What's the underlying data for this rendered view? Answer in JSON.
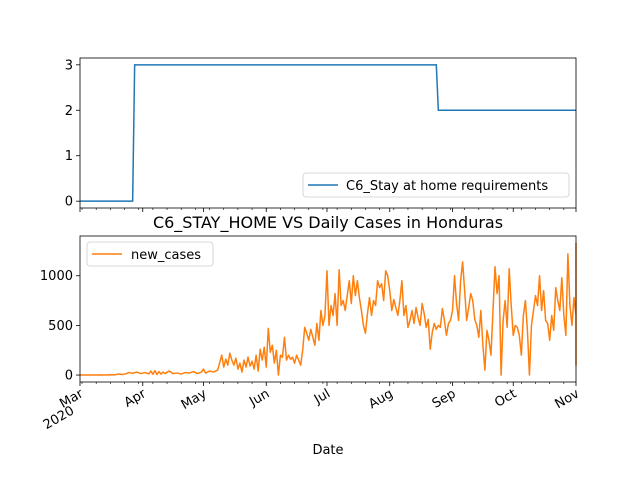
{
  "figure_title": "C6_STAY_HOME VS Daily Cases in Honduras",
  "shared_xlabel": "Date",
  "x_ticks": [
    {
      "date": "2020-03-01",
      "label": "Mar",
      "sublabel": "2020"
    },
    {
      "date": "2020-04-01",
      "label": "Apr",
      "sublabel": ""
    },
    {
      "date": "2020-05-01",
      "label": "May",
      "sublabel": ""
    },
    {
      "date": "2020-06-01",
      "label": "Jun",
      "sublabel": ""
    },
    {
      "date": "2020-07-01",
      "label": "Jul",
      "sublabel": ""
    },
    {
      "date": "2020-08-01",
      "label": "Aug",
      "sublabel": ""
    },
    {
      "date": "2020-09-01",
      "label": "Sep",
      "sublabel": ""
    },
    {
      "date": "2020-10-01",
      "label": "Oct",
      "sublabel": ""
    },
    {
      "date": "2020-11-01",
      "label": "Nov",
      "sublabel": ""
    }
  ],
  "colors": {
    "stay_home": "#1f77b4",
    "new_cases": "#ff7f0e"
  },
  "chart_data": [
    {
      "type": "line",
      "title": "",
      "xlabel": "",
      "ylabel": "",
      "xlim": [
        "2020-03-01",
        "2020-11-01"
      ],
      "ylim": [
        -0.15,
        3.15
      ],
      "yticks": [
        "0",
        "1",
        "2",
        "3"
      ],
      "legend": {
        "placement": "lower-right"
      },
      "series": [
        {
          "name": "C6_Stay at home requirements",
          "points": [
            [
              "2020-03-01",
              0
            ],
            [
              "2020-03-27",
              0
            ],
            [
              "2020-03-28",
              3
            ],
            [
              "2020-08-24",
              3
            ],
            [
              "2020-08-25",
              2
            ],
            [
              "2020-11-01",
              2
            ]
          ]
        }
      ]
    },
    {
      "type": "line",
      "title": "C6_STAY_HOME VS Daily Cases in Honduras",
      "xlabel": "Date",
      "ylabel": "",
      "xlim": [
        "2020-03-01",
        "2020-11-01"
      ],
      "ylim": [
        -70,
        1400
      ],
      "yticks": [
        "0",
        "500",
        "1000"
      ],
      "legend": {
        "placement": "upper-left"
      },
      "series": [
        {
          "name": "new_cases",
          "points": [
            [
              "2020-03-01",
              0
            ],
            [
              "2020-03-10",
              0
            ],
            [
              "2020-03-11",
              2
            ],
            [
              "2020-03-13",
              0
            ],
            [
              "2020-03-16",
              3
            ],
            [
              "2020-03-18",
              2
            ],
            [
              "2020-03-20",
              10
            ],
            [
              "2020-03-22",
              5
            ],
            [
              "2020-03-24",
              15
            ],
            [
              "2020-03-25",
              25
            ],
            [
              "2020-03-27",
              18
            ],
            [
              "2020-03-29",
              30
            ],
            [
              "2020-03-31",
              15
            ],
            [
              "2020-04-02",
              25
            ],
            [
              "2020-04-04",
              12
            ],
            [
              "2020-04-05",
              40
            ],
            [
              "2020-04-06",
              8
            ],
            [
              "2020-04-07",
              45
            ],
            [
              "2020-04-08",
              5
            ],
            [
              "2020-04-09",
              35
            ],
            [
              "2020-04-10",
              10
            ],
            [
              "2020-04-11",
              30
            ],
            [
              "2020-04-12",
              15
            ],
            [
              "2020-04-14",
              40
            ],
            [
              "2020-04-16",
              15
            ],
            [
              "2020-04-18",
              20
            ],
            [
              "2020-04-20",
              10
            ],
            [
              "2020-04-22",
              25
            ],
            [
              "2020-04-24",
              20
            ],
            [
              "2020-04-26",
              35
            ],
            [
              "2020-04-28",
              15
            ],
            [
              "2020-04-30",
              30
            ],
            [
              "2020-05-01",
              60
            ],
            [
              "2020-05-02",
              20
            ],
            [
              "2020-05-04",
              40
            ],
            [
              "2020-05-06",
              30
            ],
            [
              "2020-05-08",
              50
            ],
            [
              "2020-05-10",
              200
            ],
            [
              "2020-05-11",
              80
            ],
            [
              "2020-05-12",
              160
            ],
            [
              "2020-05-13",
              100
            ],
            [
              "2020-05-14",
              220
            ],
            [
              "2020-05-15",
              150
            ],
            [
              "2020-05-16",
              100
            ],
            [
              "2020-05-17",
              170
            ],
            [
              "2020-05-18",
              60
            ],
            [
              "2020-05-19",
              120
            ],
            [
              "2020-05-20",
              30
            ],
            [
              "2020-05-21",
              150
            ],
            [
              "2020-05-22",
              80
            ],
            [
              "2020-05-23",
              180
            ],
            [
              "2020-05-24",
              90
            ],
            [
              "2020-05-25",
              140
            ],
            [
              "2020-05-26",
              60
            ],
            [
              "2020-05-27",
              200
            ],
            [
              "2020-05-28",
              40
            ],
            [
              "2020-05-29",
              260
            ],
            [
              "2020-05-30",
              150
            ],
            [
              "2020-05-31",
              280
            ],
            [
              "2020-06-01",
              80
            ],
            [
              "2020-06-02",
              470
            ],
            [
              "2020-06-03",
              230
            ],
            [
              "2020-06-04",
              300
            ],
            [
              "2020-06-05",
              120
            ],
            [
              "2020-06-06",
              250
            ],
            [
              "2020-06-07",
              0
            ],
            [
              "2020-06-08",
              200
            ],
            [
              "2020-06-09",
              180
            ],
            [
              "2020-06-10",
              380
            ],
            [
              "2020-06-11",
              150
            ],
            [
              "2020-06-12",
              200
            ],
            [
              "2020-06-13",
              160
            ],
            [
              "2020-06-14",
              180
            ],
            [
              "2020-06-15",
              120
            ],
            [
              "2020-06-16",
              200
            ],
            [
              "2020-06-17",
              150
            ],
            [
              "2020-06-18",
              100
            ],
            [
              "2020-06-19",
              250
            ],
            [
              "2020-06-20",
              480
            ],
            [
              "2020-06-21",
              420
            ],
            [
              "2020-06-22",
              350
            ],
            [
              "2020-06-23",
              460
            ],
            [
              "2020-06-24",
              380
            ],
            [
              "2020-06-25",
              300
            ],
            [
              "2020-06-26",
              520
            ],
            [
              "2020-06-27",
              350
            ],
            [
              "2020-06-28",
              650
            ],
            [
              "2020-06-29",
              500
            ],
            [
              "2020-06-30",
              600
            ],
            [
              "2020-07-01",
              1050
            ],
            [
              "2020-07-02",
              500
            ],
            [
              "2020-07-03",
              700
            ],
            [
              "2020-07-04",
              600
            ],
            [
              "2020-07-05",
              820
            ],
            [
              "2020-07-06",
              500
            ],
            [
              "2020-07-07",
              1060
            ],
            [
              "2020-07-08",
              700
            ],
            [
              "2020-07-09",
              750
            ],
            [
              "2020-07-10",
              650
            ],
            [
              "2020-07-11",
              800
            ],
            [
              "2020-07-12",
              950
            ],
            [
              "2020-07-13",
              720
            ],
            [
              "2020-07-14",
              1000
            ],
            [
              "2020-07-15",
              800
            ],
            [
              "2020-07-16",
              950
            ],
            [
              "2020-07-17",
              780
            ],
            [
              "2020-07-18",
              650
            ],
            [
              "2020-07-19",
              500
            ],
            [
              "2020-07-20",
              420
            ],
            [
              "2020-07-21",
              620
            ],
            [
              "2020-07-22",
              780
            ],
            [
              "2020-07-23",
              600
            ],
            [
              "2020-07-24",
              750
            ],
            [
              "2020-07-25",
              700
            ],
            [
              "2020-07-26",
              950
            ],
            [
              "2020-07-27",
              880
            ],
            [
              "2020-07-28",
              920
            ],
            [
              "2020-07-29",
              750
            ],
            [
              "2020-07-30",
              1050
            ],
            [
              "2020-07-31",
              1000
            ],
            [
              "2020-08-01",
              850
            ],
            [
              "2020-08-02",
              650
            ],
            [
              "2020-08-03",
              760
            ],
            [
              "2020-08-04",
              680
            ],
            [
              "2020-08-05",
              600
            ],
            [
              "2020-08-06",
              750
            ],
            [
              "2020-08-07",
              950
            ],
            [
              "2020-08-08",
              600
            ],
            [
              "2020-08-09",
              700
            ],
            [
              "2020-08-10",
              480
            ],
            [
              "2020-08-11",
              550
            ],
            [
              "2020-08-12",
              650
            ],
            [
              "2020-08-13",
              520
            ],
            [
              "2020-08-14",
              680
            ],
            [
              "2020-08-15",
              580
            ],
            [
              "2020-08-16",
              500
            ],
            [
              "2020-08-17",
              720
            ],
            [
              "2020-08-18",
              620
            ],
            [
              "2020-08-19",
              480
            ],
            [
              "2020-08-20",
              560
            ],
            [
              "2020-08-21",
              260
            ],
            [
              "2020-08-22",
              430
            ],
            [
              "2020-08-23",
              520
            ],
            [
              "2020-08-24",
              460
            ],
            [
              "2020-08-25",
              500
            ],
            [
              "2020-08-26",
              480
            ],
            [
              "2020-08-27",
              670
            ],
            [
              "2020-08-28",
              550
            ],
            [
              "2020-08-29",
              400
            ],
            [
              "2020-08-30",
              520
            ],
            [
              "2020-08-31",
              550
            ],
            [
              "2020-09-01",
              650
            ],
            [
              "2020-09-02",
              1000
            ],
            [
              "2020-09-03",
              720
            ],
            [
              "2020-09-04",
              550
            ],
            [
              "2020-09-05",
              950
            ],
            [
              "2020-09-06",
              1140
            ],
            [
              "2020-09-07",
              850
            ],
            [
              "2020-09-08",
              550
            ],
            [
              "2020-09-09",
              680
            ],
            [
              "2020-09-10",
              820
            ],
            [
              "2020-09-11",
              750
            ],
            [
              "2020-09-12",
              560
            ],
            [
              "2020-09-13",
              500
            ],
            [
              "2020-09-14",
              380
            ],
            [
              "2020-09-15",
              650
            ],
            [
              "2020-09-16",
              300
            ],
            [
              "2020-09-17",
              50
            ],
            [
              "2020-09-18",
              450
            ],
            [
              "2020-09-19",
              350
            ],
            [
              "2020-09-20",
              200
            ],
            [
              "2020-09-21",
              650
            ],
            [
              "2020-09-22",
              1090
            ],
            [
              "2020-09-23",
              820
            ],
            [
              "2020-09-24",
              1000
            ],
            [
              "2020-09-25",
              0
            ],
            [
              "2020-09-26",
              550
            ],
            [
              "2020-09-27",
              750
            ],
            [
              "2020-09-28",
              480
            ],
            [
              "2020-09-29",
              1070
            ],
            [
              "2020-09-30",
              700
            ],
            [
              "2020-10-01",
              400
            ],
            [
              "2020-10-02",
              500
            ],
            [
              "2020-10-03",
              480
            ],
            [
              "2020-10-04",
              400
            ],
            [
              "2020-10-05",
              200
            ],
            [
              "2020-10-06",
              600
            ],
            [
              "2020-10-07",
              750
            ],
            [
              "2020-10-08",
              450
            ],
            [
              "2020-10-09",
              0
            ],
            [
              "2020-10-10",
              500
            ],
            [
              "2020-10-11",
              650
            ],
            [
              "2020-10-12",
              800
            ],
            [
              "2020-10-13",
              700
            ],
            [
              "2020-10-14",
              1000
            ],
            [
              "2020-10-15",
              650
            ],
            [
              "2020-10-16",
              850
            ],
            [
              "2020-10-17",
              550
            ],
            [
              "2020-10-18",
              520
            ],
            [
              "2020-10-19",
              350
            ],
            [
              "2020-10-20",
              600
            ],
            [
              "2020-10-21",
              450
            ],
            [
              "2020-10-22",
              880
            ],
            [
              "2020-10-23",
              750
            ],
            [
              "2020-10-24",
              650
            ],
            [
              "2020-10-25",
              980
            ],
            [
              "2020-10-26",
              600
            ],
            [
              "2020-10-27",
              400
            ],
            [
              "2020-10-28",
              1220
            ],
            [
              "2020-10-29",
              700
            ],
            [
              "2020-10-30",
              500
            ],
            [
              "2020-10-31",
              780
            ],
            [
              "2020-11-01",
              600
            ],
            [
              "2020-11-02",
              850
            ],
            [
              "2020-11-03",
              950
            ],
            [
              "2020-11-04",
              820
            ],
            [
              "2020-11-05",
              100
            ],
            [
              "2020-11-06",
              1330
            ]
          ]
        }
      ]
    }
  ]
}
